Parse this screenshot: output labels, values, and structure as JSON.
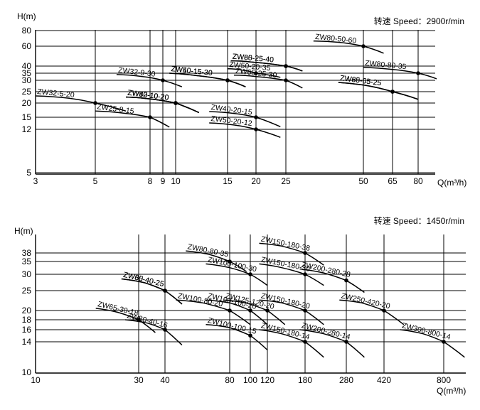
{
  "chart_data": [
    {
      "type": "line",
      "speed_label": "转速 Speed：2900r/min",
      "ylabel": "H(m)",
      "xlabel": "Q(m³/h)",
      "x_scale": "log",
      "y_scale": "log",
      "xlim": [
        3,
        125
      ],
      "ylim": [
        5,
        80
      ],
      "x_ticks": [
        "3",
        "5",
        "8",
        "9",
        "10",
        "15",
        "20",
        "25",
        "50",
        "65",
        "80"
      ],
      "x_tick_values": [
        3,
        5,
        8,
        9,
        10,
        15,
        20,
        25,
        50,
        65,
        80
      ],
      "y_ticks": [
        "80",
        "60",
        "40",
        "35",
        "30",
        "25",
        "20",
        "15",
        "12",
        "5"
      ],
      "y_tick_values": [
        80,
        60,
        40,
        35,
        30,
        25,
        20,
        15,
        12,
        5
      ],
      "series": [
        {
          "name": "ZW32-5-20",
          "x": [
            3,
            4,
            5,
            6.5
          ],
          "y": [
            23,
            22,
            20,
            17
          ],
          "rated": [
            5,
            20
          ]
        },
        {
          "name": "ZW25-8-15",
          "x": [
            5,
            6.5,
            8,
            9.5
          ],
          "y": [
            17,
            16.2,
            15,
            12.5
          ],
          "rated": [
            8,
            15
          ]
        },
        {
          "name": "ZW32-9-30",
          "x": [
            6,
            7.5,
            9,
            10.5
          ],
          "y": [
            34,
            32.5,
            30,
            27
          ],
          "rated": [
            9,
            30
          ]
        },
        {
          "name": "ZW32-10-20",
          "x": [
            6.5,
            8,
            10,
            12
          ],
          "y": [
            22.5,
            21.7,
            20,
            16.5
          ],
          "rated": [
            10,
            20
          ]
        },
        {
          "name": "ZW40-10-20",
          "x": [
            6.5,
            8,
            10,
            12
          ],
          "y": [
            22.5,
            21.7,
            20,
            16.5
          ],
          "rated": [
            10,
            20
          ]
        },
        {
          "name": "ZW50-10-20",
          "x": [
            6.5,
            8,
            10,
            12
          ],
          "y": [
            22.5,
            21.7,
            20,
            16.5
          ],
          "rated": [
            10,
            20
          ]
        },
        {
          "name": "ZW40-15-30",
          "x": [
            9.5,
            12,
            15,
            18
          ],
          "y": [
            35,
            33,
            30,
            27
          ],
          "rated": [
            15,
            30
          ]
        },
        {
          "name": "ZW50-15-30",
          "x": [
            9.5,
            12,
            15,
            18
          ],
          "y": [
            35,
            33,
            30,
            27
          ],
          "rated": [
            15,
            30
          ]
        },
        {
          "name": "ZW40-20-15",
          "x": [
            13,
            16,
            20,
            24
          ],
          "y": [
            16.8,
            16.2,
            15,
            12.6
          ],
          "rated": [
            20,
            15
          ]
        },
        {
          "name": "ZW50-20-12",
          "x": [
            13,
            16,
            20,
            24
          ],
          "y": [
            13.5,
            13,
            12,
            10.2
          ],
          "rated": [
            20,
            12
          ]
        },
        {
          "name": "ZW50-20-35",
          "x": [
            15,
            17.5,
            20,
            24
          ],
          "y": [
            38,
            37,
            35,
            32
          ],
          "rated": [
            20,
            35
          ]
        },
        {
          "name": "ZW65-25-40",
          "x": [
            15.5,
            19,
            25,
            29
          ],
          "y": [
            44.5,
            43.5,
            40,
            36.5
          ],
          "rated": [
            25,
            40
          ]
        },
        {
          "name": "ZW80-25-40",
          "x": [
            15.5,
            19,
            25,
            29
          ],
          "y": [
            44.5,
            43.5,
            40,
            36.5
          ],
          "rated": [
            25,
            40
          ]
        },
        {
          "name": "ZW65-25-30",
          "x": [
            16,
            20,
            25,
            29
          ],
          "y": [
            33.5,
            32.5,
            30,
            26.5
          ],
          "rated": [
            25,
            30
          ]
        },
        {
          "name": "ZW80-50-60",
          "x": [
            32,
            40,
            50,
            60
          ],
          "y": [
            66,
            64.5,
            60,
            52
          ],
          "rated": [
            50,
            60
          ]
        },
        {
          "name": "ZW80-80-35",
          "x": [
            50,
            65,
            80,
            100
          ],
          "y": [
            39,
            37.5,
            35,
            31
          ],
          "rated": [
            80,
            35
          ]
        },
        {
          "name": "ZW65-65-25",
          "x": [
            40,
            52,
            65,
            80
          ],
          "y": [
            29,
            27.5,
            25,
            21.5
          ],
          "rated": [
            65,
            25
          ]
        },
        {
          "name": "ZW80-65-25",
          "x": [
            40,
            52,
            65,
            80
          ],
          "y": [
            29,
            27.5,
            25,
            21.5
          ],
          "rated": [
            65,
            25
          ]
        }
      ]
    },
    {
      "type": "line",
      "speed_label": "转速 Speed：1450r/min",
      "ylabel": "H(m)",
      "xlabel": "Q(m³/h)",
      "x_scale": "log",
      "y_scale": "log",
      "xlim": [
        10,
        1000
      ],
      "ylim": [
        10,
        42
      ],
      "x_ticks": [
        "10",
        "30",
        "40",
        "80",
        "100",
        "120",
        "180",
        "280",
        "420",
        "800"
      ],
      "x_tick_values": [
        10,
        30,
        40,
        80,
        100,
        120,
        180,
        280,
        420,
        800
      ],
      "y_ticks": [
        "38",
        "35",
        "30",
        "25",
        "20",
        "18",
        "16",
        "14",
        "10"
      ],
      "y_tick_values": [
        38,
        35,
        30,
        25,
        20,
        18,
        16,
        14,
        10
      ],
      "series": [
        {
          "name": "ZW65-30-18",
          "x": [
            19,
            24,
            30,
            36
          ],
          "y": [
            20.5,
            19.6,
            18,
            15.5
          ],
          "rated": [
            30,
            18
          ]
        },
        {
          "name": "ZW80-40-16",
          "x": [
            26,
            33,
            40,
            48
          ],
          "y": [
            18,
            17.3,
            16,
            13.5
          ],
          "rated": [
            40,
            16
          ]
        },
        {
          "name": "ZW65-40-25",
          "x": [
            25,
            32,
            40,
            48
          ],
          "y": [
            28.5,
            27.3,
            25,
            21.5
          ],
          "rated": [
            40,
            25
          ]
        },
        {
          "name": "ZW80-40-25",
          "x": [
            25,
            32,
            40,
            48
          ],
          "y": [
            28.5,
            27.3,
            25,
            21.5
          ],
          "rated": [
            40,
            25
          ]
        },
        {
          "name": "ZW80-80-35",
          "x": [
            50,
            64,
            80,
            96
          ],
          "y": [
            39,
            37.5,
            35,
            31
          ],
          "rated": [
            80,
            35
          ]
        },
        {
          "name": "ZW100-100-30",
          "x": [
            62,
            80,
            100,
            120
          ],
          "y": [
            34,
            32.5,
            30,
            26.5
          ],
          "rated": [
            100,
            30
          ]
        },
        {
          "name": "ZW100-80-20",
          "x": [
            45,
            60,
            80,
            100
          ],
          "y": [
            22.5,
            21.8,
            20,
            17
          ],
          "rated": [
            80,
            20
          ]
        },
        {
          "name": "ZW100-100-20",
          "x": [
            62,
            80,
            100,
            120
          ],
          "y": [
            22.5,
            21.8,
            20,
            17
          ],
          "rated": [
            100,
            20
          ]
        },
        {
          "name": "ZW125-120-20",
          "x": [
            75,
            95,
            120,
            145
          ],
          "y": [
            22.5,
            21.8,
            20,
            17
          ],
          "rated": [
            120,
            20
          ]
        },
        {
          "name": "ZW100-100-15",
          "x": [
            62,
            80,
            100,
            120
          ],
          "y": [
            17,
            16.4,
            15,
            12.8
          ],
          "rated": [
            100,
            15
          ]
        },
        {
          "name": "ZW150-180-38",
          "x": [
            110,
            140,
            180,
            220
          ],
          "y": [
            43,
            41.5,
            38,
            33.5
          ],
          "rated": [
            180,
            38
          ]
        },
        {
          "name": "ZW150-180-30",
          "x": [
            110,
            140,
            180,
            220
          ],
          "y": [
            34,
            32.5,
            30,
            26.5
          ],
          "rated": [
            180,
            30
          ]
        },
        {
          "name": "ZW150-180-20",
          "x": [
            110,
            140,
            180,
            220
          ],
          "y": [
            22.5,
            21.8,
            20,
            17
          ],
          "rated": [
            180,
            20
          ]
        },
        {
          "name": "ZW150-180-14",
          "x": [
            110,
            140,
            180,
            220
          ],
          "y": [
            16,
            15.3,
            14,
            11.8
          ],
          "rated": [
            180,
            14
          ]
        },
        {
          "name": "ZW200-280-28",
          "x": [
            170,
            220,
            280,
            340
          ],
          "y": [
            32,
            30.5,
            28,
            24.5
          ],
          "rated": [
            280,
            28
          ]
        },
        {
          "name": "ZW200-280-14",
          "x": [
            170,
            220,
            280,
            340
          ],
          "y": [
            16,
            15.3,
            14,
            11.8
          ],
          "rated": [
            280,
            14
          ]
        },
        {
          "name": "ZW250-420-20",
          "x": [
            260,
            330,
            420,
            520
          ],
          "y": [
            22.5,
            21.8,
            20,
            17
          ],
          "rated": [
            420,
            20
          ]
        },
        {
          "name": "ZW300-800-14",
          "x": [
            500,
            640,
            800,
            960
          ],
          "y": [
            16,
            15.3,
            14,
            11.8
          ],
          "rated": [
            800,
            14
          ]
        }
      ]
    }
  ]
}
